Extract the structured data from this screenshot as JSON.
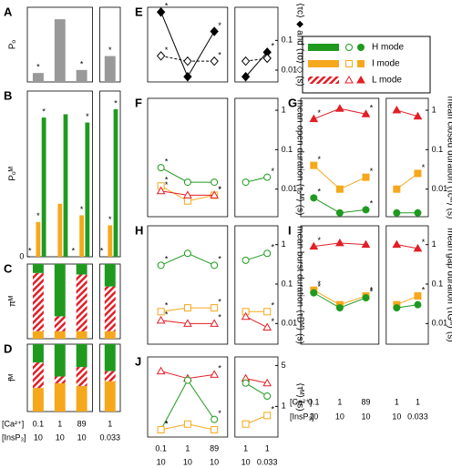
{
  "star_label": "*",
  "conditions": {
    "ca_label": "[Ca²⁺]",
    "insp3_label": "[InsP₃]",
    "left": {
      "ca": [
        0.1,
        1,
        89,
        1
      ],
      "insp3": [
        10,
        10,
        10,
        0.033
      ]
    },
    "right": {
      "ca": [
        0.1,
        1,
        89,
        1,
        1
      ],
      "insp3": [
        10,
        10,
        10,
        10,
        0.033
      ]
    }
  },
  "chart_data": [
    {
      "type": "bar",
      "label": "A",
      "ylabel": "Pₒ",
      "values": [
        0.09,
        0.63,
        0.12,
        0.26
      ],
      "color": "#999999",
      "starred": [
        true,
        false,
        true,
        true
      ],
      "ylim": [
        0,
        0.75
      ]
    },
    {
      "type": "grouped_bar",
      "label": "B",
      "ylabel": "Pₒᴹ",
      "ylim": [
        0,
        1
      ],
      "yticks": [
        0
      ],
      "series": [
        {
          "name": "H mode",
          "color": "#1f9a1f",
          "values": [
            0.84,
            0.86,
            0.81,
            0.89
          ],
          "starred": [
            true,
            false,
            true,
            true
          ]
        },
        {
          "name": "I mode",
          "color": "#f5a81c",
          "values": [
            0.21,
            0.32,
            0.25,
            0.19
          ],
          "starred": [
            true,
            false,
            true,
            true
          ]
        },
        {
          "name": "L mode",
          "color": "#e21e26",
          "values": [
            0,
            0,
            0,
            0
          ],
          "starred": [
            true,
            false,
            true,
            true
          ]
        }
      ]
    },
    {
      "type": "stacked_bar",
      "label": "C",
      "ylabel": "πᴹ",
      "ylim": [
        0,
        1
      ],
      "series": [
        {
          "color": "#f5a81c",
          "values": [
            0.1,
            0.1,
            0.1,
            0.1
          ]
        },
        {
          "color": "#e21e26",
          "hatch": true,
          "values": [
            0.78,
            0.2,
            0.76,
            0.6
          ]
        },
        {
          "color": "#1f9a1f",
          "values": [
            0.12,
            0.7,
            0.14,
            0.3
          ]
        }
      ]
    },
    {
      "type": "stacked_bar",
      "label": "D",
      "ylabel": "fᴹ",
      "ylim": [
        0,
        1
      ],
      "series": [
        {
          "color": "#f5a81c",
          "values": [
            0.35,
            0.42,
            0.38,
            0.45
          ]
        },
        {
          "color": "#e21e26",
          "hatch": true,
          "values": [
            0.38,
            0.1,
            0.28,
            0.15
          ]
        },
        {
          "color": "#1f9a1f",
          "values": [
            0.27,
            0.48,
            0.34,
            0.4
          ]
        }
      ]
    },
    {
      "type": "line",
      "label": "E",
      "ylabel": "⟨τc⟩ ◆ and ⟨τo⟩ ◇ (s)",
      "ylog": true,
      "ylim": [
        0.004,
        1.3
      ],
      "yticks": [
        0.01,
        0.1
      ],
      "series": [
        {
          "marker": "diamond",
          "filled": true,
          "color": "#000000",
          "values": [
            0.9,
            0.006,
            0.2,
            0.006,
            0.04
          ],
          "starred": [
            true,
            false,
            true,
            false,
            true
          ]
        },
        {
          "marker": "diamond",
          "filled": false,
          "dashed": true,
          "color": "#000000",
          "values": [
            0.03,
            0.02,
            0.02,
            0.02,
            0.025
          ],
          "starred": [
            true,
            false,
            true,
            false,
            false
          ]
        }
      ]
    },
    {
      "type": "line",
      "label": "F",
      "ylabel": "mean open duration ⟨τₒᴹ⟩ (s)",
      "ylog": true,
      "ylim": [
        0.002,
        2
      ],
      "yticks": [
        0.01,
        0.1,
        1
      ],
      "series": [
        {
          "name": "H mode",
          "marker": "circle",
          "filled": false,
          "color": "#1f9a1f",
          "values": [
            0.035,
            0.015,
            0.015,
            0.015,
            0.02
          ],
          "starred": [
            true,
            false,
            false,
            false,
            true
          ]
        },
        {
          "name": "I mode",
          "marker": "square",
          "filled": false,
          "color": "#f5a81c",
          "values": [
            0.012,
            0.005,
            0.007,
            null,
            null
          ],
          "starred": [
            true,
            false,
            true,
            false,
            false
          ]
        },
        {
          "name": "L mode",
          "marker": "triangle",
          "filled": false,
          "color": "#e21e26",
          "values": [
            0.009,
            0.007,
            0.007,
            null,
            null
          ],
          "starred": [
            true,
            false,
            true,
            false,
            false
          ]
        }
      ]
    },
    {
      "type": "line",
      "label": "G",
      "ylabel": "mean closed duration ⟨τcᴹ⟩ (s)",
      "ylog": true,
      "ylim": [
        0.002,
        2
      ],
      "yticks": [
        0.01,
        0.1,
        1
      ],
      "series": [
        {
          "name": "L mode",
          "marker": "triangle",
          "filled": true,
          "color": "#e21e26",
          "values": [
            0.6,
            1.1,
            0.8,
            1.0,
            0.7
          ],
          "starred": [
            true,
            false,
            true,
            false,
            false
          ]
        },
        {
          "name": "I mode",
          "marker": "square",
          "filled": true,
          "color": "#f5a81c",
          "values": [
            0.04,
            0.01,
            0.02,
            0.01,
            0.025
          ],
          "starred": [
            true,
            false,
            true,
            false,
            true
          ]
        },
        {
          "name": "H mode",
          "marker": "circle",
          "filled": true,
          "color": "#1f9a1f",
          "values": [
            0.006,
            0.0025,
            0.003,
            0.0025,
            0.0025
          ],
          "starred": [
            true,
            false,
            true,
            false,
            false
          ]
        }
      ]
    },
    {
      "type": "line",
      "label": "H",
      "ylabel": "mean burst duration ⟨τBᴹ⟩ (s)",
      "ylog": true,
      "ylim": [
        0.003,
        3
      ],
      "yticks": [
        0.01,
        0.1,
        1
      ],
      "series": [
        {
          "name": "H mode",
          "marker": "circle",
          "filled": false,
          "color": "#1f9a1f",
          "values": [
            0.3,
            0.6,
            0.3,
            0.4,
            0.6
          ],
          "starred": [
            true,
            false,
            true,
            false,
            true
          ]
        },
        {
          "name": "I mode",
          "marker": "square",
          "filled": false,
          "color": "#f5a81c",
          "values": [
            0.02,
            0.025,
            0.025,
            0.02,
            0.02
          ],
          "starred": [
            true,
            false,
            true,
            false,
            true
          ]
        },
        {
          "name": "L mode",
          "marker": "triangle",
          "filled": false,
          "color": "#e21e26",
          "values": [
            0.012,
            0.01,
            0.01,
            0.015,
            0.008
          ],
          "starred": [
            true,
            false,
            true,
            false,
            true
          ]
        }
      ]
    },
    {
      "type": "line",
      "label": "I",
      "ylabel": "mean gap duration ⟨τGᴹ⟩ (s)",
      "ylog": true,
      "ylim": [
        0.003,
        3
      ],
      "yticks": [
        0.01,
        0.1,
        1
      ],
      "series": [
        {
          "name": "L mode",
          "marker": "triangle",
          "filled": true,
          "color": "#e21e26",
          "values": [
            0.9,
            1.1,
            1.0,
            1.0,
            0.8
          ],
          "starred": [
            true,
            false,
            false,
            false,
            true
          ]
        },
        {
          "name": "I mode",
          "marker": "square",
          "filled": true,
          "color": "#f5a81c",
          "values": [
            0.07,
            0.03,
            0.05,
            0.03,
            0.05
          ],
          "starred": [
            true,
            false,
            true,
            false,
            true
          ]
        },
        {
          "name": "H mode",
          "marker": "circle",
          "filled": true,
          "color": "#1f9a1f",
          "values": [
            0.06,
            0.025,
            0.045,
            0.025,
            0.03
          ],
          "starred": [
            true,
            false,
            true,
            false,
            false
          ]
        }
      ]
    },
    {
      "type": "line",
      "label": "J",
      "ylabel": "⟨τᴹ⟩ (s)",
      "ylog": true,
      "ylim": [
        0.3,
        7
      ],
      "yticks": [
        1,
        5
      ],
      "series": [
        {
          "name": "L mode",
          "marker": "triangle",
          "filled": false,
          "color": "#e21e26",
          "values": [
            4,
            3,
            3.5,
            3,
            2.5
          ],
          "starred": [
            false,
            false,
            true,
            false,
            false
          ]
        },
        {
          "name": "H mode",
          "marker": "circle",
          "filled": false,
          "color": "#1f9a1f",
          "values": [
            0.4,
            2.8,
            0.6,
            2.5,
            1.5
          ],
          "starred": [
            true,
            false,
            true,
            false,
            false
          ]
        },
        {
          "name": "I mode",
          "marker": "square",
          "filled": false,
          "color": "#f5a81c",
          "values": [
            0.4,
            0.5,
            0.4,
            0.5,
            0.7
          ],
          "starred": [
            true,
            false,
            false,
            false,
            true
          ]
        }
      ]
    }
  ]
}
